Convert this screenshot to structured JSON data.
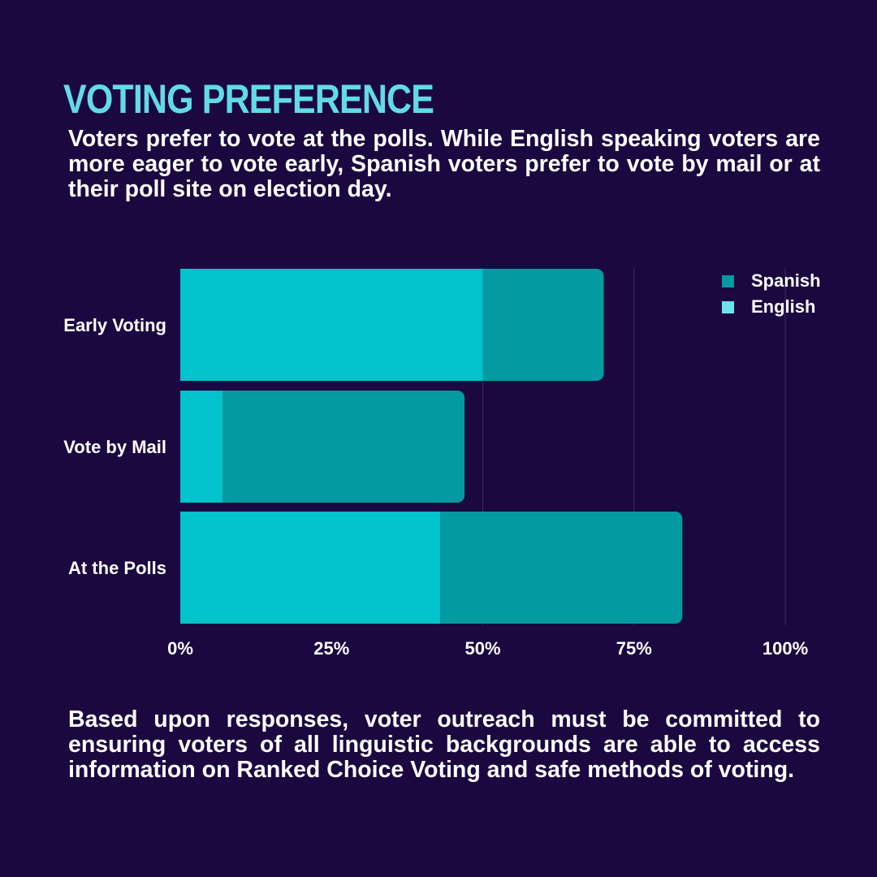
{
  "title": "VOTING PREFERENCE",
  "intro": "Voters prefer to vote at the polls. While English speaking voters are more eager to vote early, Spanish voters prefer to vote by mail or at their poll site on election day.",
  "outro": "Based upon responses, voter outreach must be committed to ensuring voters of all linguistic backgrounds are able to access information on Ranked Choice Voting and safe methods of voting.",
  "colors": {
    "background": "#1c0840",
    "title": "#62dbe8",
    "english": "#00c3cc",
    "spanish": "#039ba1",
    "legend_english": "#6de3ec",
    "grid": "#3b2a66"
  },
  "chart_data": {
    "type": "bar",
    "orientation": "horizontal",
    "stacked": true,
    "categories": [
      "Early Voting",
      "Vote by Mail",
      "At the Polls"
    ],
    "series": [
      {
        "name": "English",
        "values": [
          50,
          7,
          43
        ]
      },
      {
        "name": "Spanish",
        "values": [
          20,
          40,
          40
        ]
      }
    ],
    "xlim": [
      0,
      100
    ],
    "xticks": [
      "0%",
      "25%",
      "50%",
      "75%",
      "100%"
    ],
    "legend": [
      "Spanish",
      "English"
    ],
    "legend_position": "top-right",
    "grid": true
  }
}
